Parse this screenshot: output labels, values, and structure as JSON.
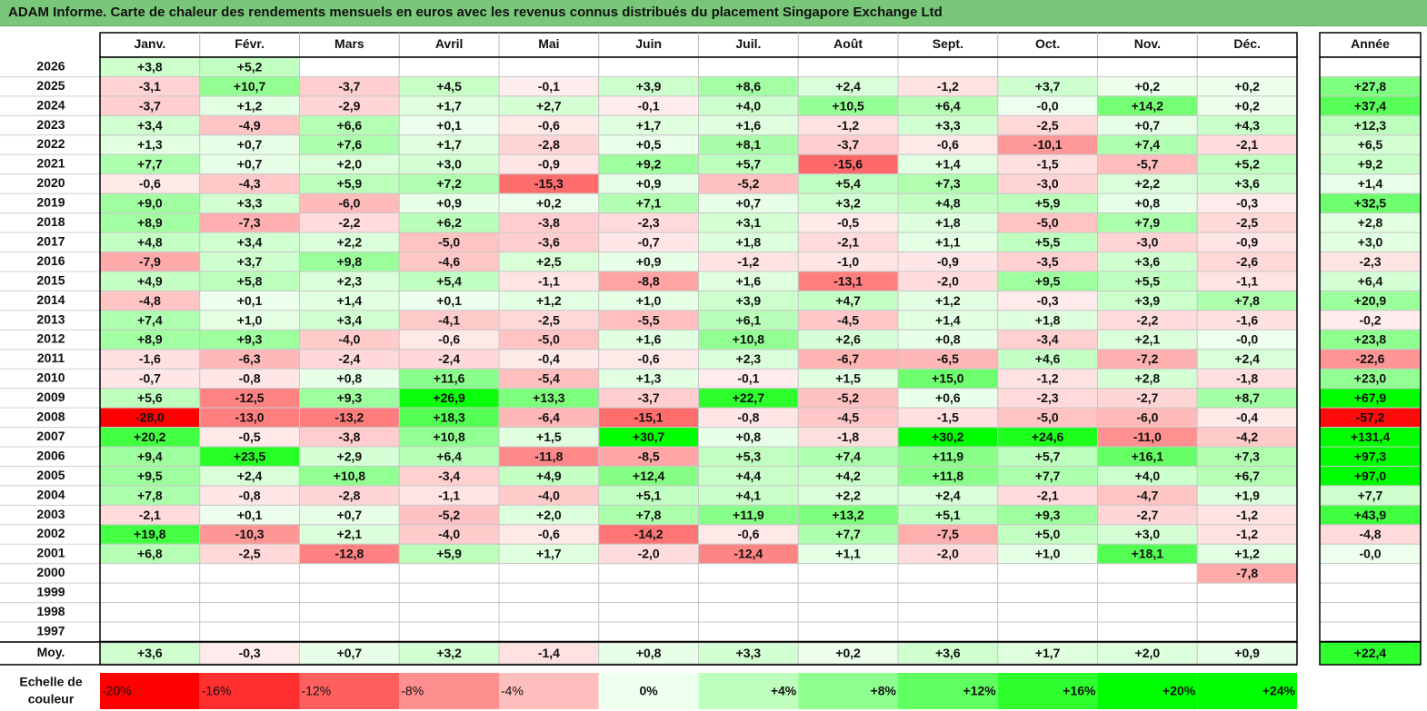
{
  "title": "ADAM Informe. Carte de chaleur des rendements mensuels en euros avec les revenus connus distribués du placement Singapore Exchange Ltd",
  "chart_data": {
    "type": "heatmap",
    "title": "ADAM Informe. Carte de chaleur des rendements mensuels en euros avec les revenus connus distribués du placement Singapore Exchange Ltd",
    "months": [
      "Janv.",
      "Févr.",
      "Mars",
      "Avril",
      "Mai",
      "Juin",
      "Juil.",
      "Août",
      "Sept.",
      "Oct.",
      "Nov.",
      "Déc."
    ],
    "year_label": "Année",
    "avg_label": "Moy.",
    "rows": [
      {
        "year": "2026",
        "values": [
          "+3,8",
          "+5,2",
          "",
          "",
          "",
          "",
          "",
          "",
          "",
          "",
          "",
          ""
        ],
        "annual": ""
      },
      {
        "year": "2025",
        "values": [
          "-3,1",
          "+10,7",
          "-3,7",
          "+4,5",
          "-0,1",
          "+3,9",
          "+8,6",
          "+2,4",
          "-1,2",
          "+3,7",
          "+0,2",
          "+0,2"
        ],
        "annual": "+27,8"
      },
      {
        "year": "2024",
        "values": [
          "-3,7",
          "+1,2",
          "-2,9",
          "+1,7",
          "+2,7",
          "-0,1",
          "+4,0",
          "+10,5",
          "+6,4",
          "-0,0",
          "+14,2",
          "+0,2"
        ],
        "annual": "+37,4"
      },
      {
        "year": "2023",
        "values": [
          "+3,4",
          "-4,9",
          "+6,6",
          "+0,1",
          "-0,6",
          "+1,7",
          "+1,6",
          "-1,2",
          "+3,3",
          "-2,5",
          "+0,7",
          "+4,3"
        ],
        "annual": "+12,3"
      },
      {
        "year": "2022",
        "values": [
          "+1,3",
          "+0,7",
          "+7,6",
          "+1,7",
          "-2,8",
          "+0,5",
          "+8,1",
          "-3,7",
          "-0,6",
          "-10,1",
          "+7,4",
          "-2,1"
        ],
        "annual": "+6,5"
      },
      {
        "year": "2021",
        "values": [
          "+7,7",
          "+0,7",
          "+2,0",
          "+3,0",
          "-0,9",
          "+9,2",
          "+5,7",
          "-15,6",
          "+1,4",
          "-1,5",
          "-5,7",
          "+5,2"
        ],
        "annual": "+9,2"
      },
      {
        "year": "2020",
        "values": [
          "-0,6",
          "-4,3",
          "+5,9",
          "+7,2",
          "-15,3",
          "+0,9",
          "-5,2",
          "+5,4",
          "+7,3",
          "-3,0",
          "+2,2",
          "+3,6"
        ],
        "annual": "+1,4"
      },
      {
        "year": "2019",
        "values": [
          "+9,0",
          "+3,3",
          "-6,0",
          "+0,9",
          "+0,2",
          "+7,1",
          "+0,7",
          "+3,2",
          "+4,8",
          "+5,9",
          "+0,8",
          "-0,3"
        ],
        "annual": "+32,5"
      },
      {
        "year": "2018",
        "values": [
          "+8,9",
          "-7,3",
          "-2,2",
          "+6,2",
          "-3,8",
          "-2,3",
          "+3,1",
          "-0,5",
          "+1,8",
          "-5,0",
          "+7,9",
          "-2,5"
        ],
        "annual": "+2,8"
      },
      {
        "year": "2017",
        "values": [
          "+4,8",
          "+3,4",
          "+2,2",
          "-5,0",
          "-3,6",
          "-0,7",
          "+1,8",
          "-2,1",
          "+1,1",
          "+5,5",
          "-3,0",
          "-0,9"
        ],
        "annual": "+3,0"
      },
      {
        "year": "2016",
        "values": [
          "-7,9",
          "+3,7",
          "+9,8",
          "-4,6",
          "+2,5",
          "+0,9",
          "-1,2",
          "-1,0",
          "-0,9",
          "-3,5",
          "+3,6",
          "-2,6"
        ],
        "annual": "-2,3"
      },
      {
        "year": "2015",
        "values": [
          "+4,9",
          "+5,8",
          "+2,3",
          "+5,4",
          "-1,1",
          "-8,8",
          "+1,6",
          "-13,1",
          "-2,0",
          "+9,5",
          "+5,5",
          "-1,1"
        ],
        "annual": "+6,4"
      },
      {
        "year": "2014",
        "values": [
          "-4,8",
          "+0,1",
          "+1,4",
          "+0,1",
          "+1,2",
          "+1,0",
          "+3,9",
          "+4,7",
          "+1,2",
          "-0,3",
          "+3,9",
          "+7,8"
        ],
        "annual": "+20,9"
      },
      {
        "year": "2013",
        "values": [
          "+7,4",
          "+1,0",
          "+3,4",
          "-4,1",
          "-2,5",
          "-5,5",
          "+6,1",
          "-4,5",
          "+1,4",
          "+1,8",
          "-2,2",
          "-1,6"
        ],
        "annual": "-0,2"
      },
      {
        "year": "2012",
        "values": [
          "+8,9",
          "+9,3",
          "-4,0",
          "-0,6",
          "-5,0",
          "+1,6",
          "+10,8",
          "+2,6",
          "+0,8",
          "-3,4",
          "+2,1",
          "-0,0"
        ],
        "annual": "+23,8"
      },
      {
        "year": "2011",
        "values": [
          "-1,6",
          "-6,3",
          "-2,4",
          "-2,4",
          "-0,4",
          "-0,6",
          "+2,3",
          "-6,7",
          "-6,5",
          "+4,6",
          "-7,2",
          "+2,4"
        ],
        "annual": "-22,6"
      },
      {
        "year": "2010",
        "values": [
          "-0,7",
          "-0,8",
          "+0,8",
          "+11,6",
          "-5,4",
          "+1,3",
          "-0,1",
          "+1,5",
          "+15,0",
          "-1,2",
          "+2,8",
          "-1,8"
        ],
        "annual": "+23,0"
      },
      {
        "year": "2009",
        "values": [
          "+5,6",
          "-12,5",
          "+9,3",
          "+26,9",
          "+13,3",
          "-3,7",
          "+22,7",
          "-5,2",
          "+0,6",
          "-2,3",
          "-2,7",
          "+8,7"
        ],
        "annual": "+67,9"
      },
      {
        "year": "2008",
        "values": [
          "-28,0",
          "-13,0",
          "-13,2",
          "+18,3",
          "-6,4",
          "-15,1",
          "-0,8",
          "-4,5",
          "-1,5",
          "-5,0",
          "-6,0",
          "-0,4"
        ],
        "annual": "-57,2"
      },
      {
        "year": "2007",
        "values": [
          "+20,2",
          "-0,5",
          "-3,8",
          "+10,8",
          "+1,5",
          "+30,7",
          "+0,8",
          "-1,8",
          "+30,2",
          "+24,6",
          "-11,0",
          "-4,2"
        ],
        "annual": "+131,4"
      },
      {
        "year": "2006",
        "values": [
          "+9,4",
          "+23,5",
          "+2,9",
          "+6,4",
          "-11,8",
          "-8,5",
          "+5,3",
          "+7,4",
          "+11,9",
          "+5,7",
          "+16,1",
          "+7,3"
        ],
        "annual": "+97,3"
      },
      {
        "year": "2005",
        "values": [
          "+9,5",
          "+2,4",
          "+10,8",
          "-3,4",
          "+4,9",
          "+12,4",
          "+4,4",
          "+4,2",
          "+11,8",
          "+7,7",
          "+4,0",
          "+6,7"
        ],
        "annual": "+97,0"
      },
      {
        "year": "2004",
        "values": [
          "+7,8",
          "-0,8",
          "-2,8",
          "-1,1",
          "-4,0",
          "+5,1",
          "+4,1",
          "+2,2",
          "+2,4",
          "-2,1",
          "-4,7",
          "+1,9"
        ],
        "annual": "+7,7"
      },
      {
        "year": "2003",
        "values": [
          "-2,1",
          "+0,1",
          "+0,7",
          "-5,2",
          "+2,0",
          "+7,8",
          "+11,9",
          "+13,2",
          "+5,1",
          "+9,3",
          "-2,7",
          "-1,2"
        ],
        "annual": "+43,9"
      },
      {
        "year": "2002",
        "values": [
          "+19,8",
          "-10,3",
          "+2,1",
          "-4,0",
          "-0,6",
          "-14,2",
          "-0,6",
          "+7,7",
          "-7,5",
          "+5,0",
          "+3,0",
          "-1,2"
        ],
        "annual": "-4,8"
      },
      {
        "year": "2001",
        "values": [
          "+6,8",
          "-2,5",
          "-12,8",
          "+5,9",
          "+1,7",
          "-2,0",
          "-12,4",
          "+1,1",
          "-2,0",
          "+1,0",
          "+18,1",
          "+1,2"
        ],
        "annual": "-0,0"
      },
      {
        "year": "2000",
        "values": [
          "",
          "",
          "",
          "",
          "",
          "",
          "",
          "",
          "",
          "",
          "",
          "-7,8"
        ],
        "annual": ""
      },
      {
        "year": "1999",
        "values": [
          "",
          "",
          "",
          "",
          "",
          "",
          "",
          "",
          "",
          "",
          "",
          ""
        ],
        "annual": ""
      },
      {
        "year": "1998",
        "values": [
          "",
          "",
          "",
          "",
          "",
          "",
          "",
          "",
          "",
          "",
          "",
          ""
        ],
        "annual": ""
      },
      {
        "year": "1997",
        "values": [
          "",
          "",
          "",
          "",
          "",
          "",
          "",
          "",
          "",
          "",
          "",
          ""
        ],
        "annual": ""
      }
    ],
    "average": {
      "values": [
        "+3,6",
        "-0,3",
        "+0,7",
        "+3,2",
        "-1,4",
        "+0,8",
        "+3,3",
        "+0,2",
        "+3,6",
        "+1,7",
        "+2,0",
        "+0,9"
      ],
      "annual": "+22,4"
    },
    "scale_label_line1": "Echelle de",
    "scale_label_line2": "couleur",
    "scale": [
      {
        "label": "-20%",
        "value": -20
      },
      {
        "label": "-16%",
        "value": -16
      },
      {
        "label": "-12%",
        "value": -12
      },
      {
        "label": "-8%",
        "value": -8
      },
      {
        "label": "-4%",
        "value": -4
      },
      {
        "label": "0%",
        "value": 0
      },
      {
        "label": "+4%",
        "value": 4
      },
      {
        "label": "+8%",
        "value": 8
      },
      {
        "label": "+12%",
        "value": 12
      },
      {
        "label": "+16%",
        "value": 16
      },
      {
        "label": "+20%",
        "value": 20
      },
      {
        "label": "+24%",
        "value": 24
      }
    ],
    "colors": {
      "negative": "#ff0000",
      "neutral": "#ffffff",
      "positive": "#00ff00",
      "title_bg": "#79c879"
    }
  }
}
